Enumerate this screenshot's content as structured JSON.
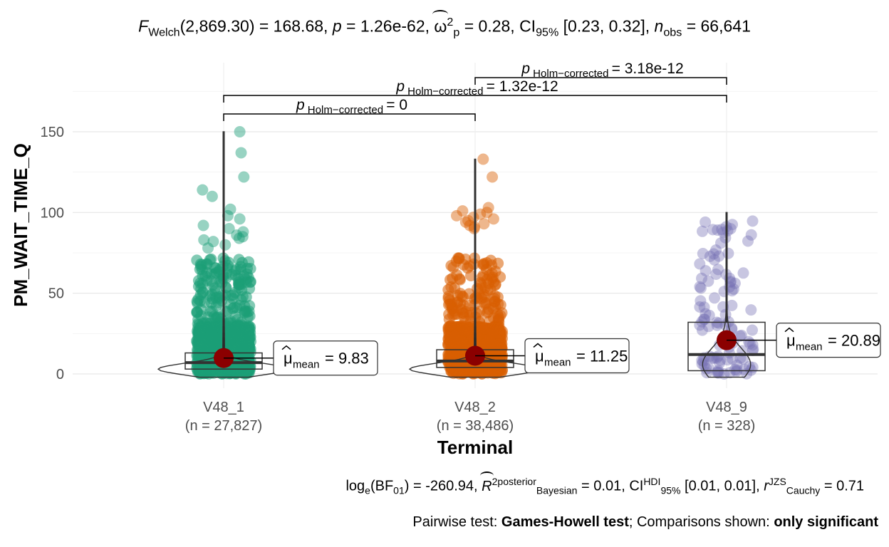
{
  "subtitle": {
    "f_label": "F",
    "f_sub": "Welch",
    "f_args": "(2,869.30) = 168.68,",
    "p_label": "p",
    "p_value": "= 1.26e-62,",
    "omega_label": "ω",
    "omega_sup": "2",
    "omega_sub": "p",
    "omega_value": "= 0.28,",
    "ci_label": "CI",
    "ci_sub": "95%",
    "ci_value": "[0.23, 0.32],",
    "n_label": "n",
    "n_sub": "obs",
    "n_value": "= 66,641"
  },
  "caption": {
    "bf_pre": "log",
    "bf_sub_e": "e",
    "bf_mid": "(BF",
    "bf_sub_01": "01",
    "bf_value": ") = -260.94,",
    "r2_label": "R",
    "r2_sup": "2",
    "r2_sup2": "posterior",
    "r2_sub": "Bayesian",
    "r2_value": "= 0.01,",
    "ci_label": "CI",
    "ci_sup": "HDI",
    "ci_sub": "95%",
    "ci_value": "[0.01, 0.01],",
    "r_label": "r",
    "r_sup": "JZS",
    "r_sub": "Cauchy",
    "r_value": "= 0.71",
    "pairwise_label": "Pairwise test:",
    "pairwise_test": "Games-Howell test",
    "comparisons_label": "; Comparisons shown:",
    "comparisons_value": "only significant"
  },
  "chart_data": {
    "type": "violin-box-scatter",
    "xlabel": "Terminal",
    "ylabel": "PM_WAIT_TIME_Q",
    "ylim": [
      -5,
      175
    ],
    "yticks": [
      0,
      50,
      100,
      150
    ],
    "grid": true,
    "groups": [
      {
        "name": "V48_1",
        "n_label": "(n = 27,827)",
        "color": "#1b9e77",
        "mean": 9.83,
        "mean_label": "= 9.83",
        "q1": 3,
        "median": 7,
        "q3": 13,
        "whisker_max": 150,
        "outliers": [
          150,
          137,
          122,
          114,
          110,
          102,
          98,
          96,
          92,
          90,
          88,
          86,
          85,
          84,
          83,
          82,
          80,
          78
        ]
      },
      {
        "name": "V48_2",
        "n_label": "(n = 38,486)",
        "color": "#d95f02",
        "mean": 11.25,
        "mean_label": "= 11.25",
        "q1": 4,
        "median": 8,
        "q3": 15,
        "whisker_max": 133,
        "outliers": [
          133,
          122,
          103,
          101,
          100,
          99,
          98,
          97,
          96,
          95,
          94,
          93,
          92,
          91,
          90
        ]
      },
      {
        "name": "V48_9",
        "n_label": "(n = 328)",
        "color": "#7570b3",
        "mean": 20.89,
        "mean_label": "= 20.89",
        "q1": 2,
        "median": 12,
        "q3": 32,
        "whisker_max": 100,
        "outliers": []
      }
    ],
    "comparisons": [
      {
        "from": "V48_1",
        "to": "V48_2",
        "p_label": "p",
        "p_sub": "Holm−corrected",
        "p_value": "= 0"
      },
      {
        "from": "V48_1",
        "to": "V48_9",
        "p_label": "p",
        "p_sub": "Holm−corrected",
        "p_value": "= 1.32e-12"
      },
      {
        "from": "V48_2",
        "to": "V48_9",
        "p_label": "p",
        "p_sub": "Holm−corrected",
        "p_value": "= 3.18e-12"
      }
    ],
    "mean_symbol": "μ",
    "mean_sub": "mean",
    "mean_color": "#8b0000"
  }
}
